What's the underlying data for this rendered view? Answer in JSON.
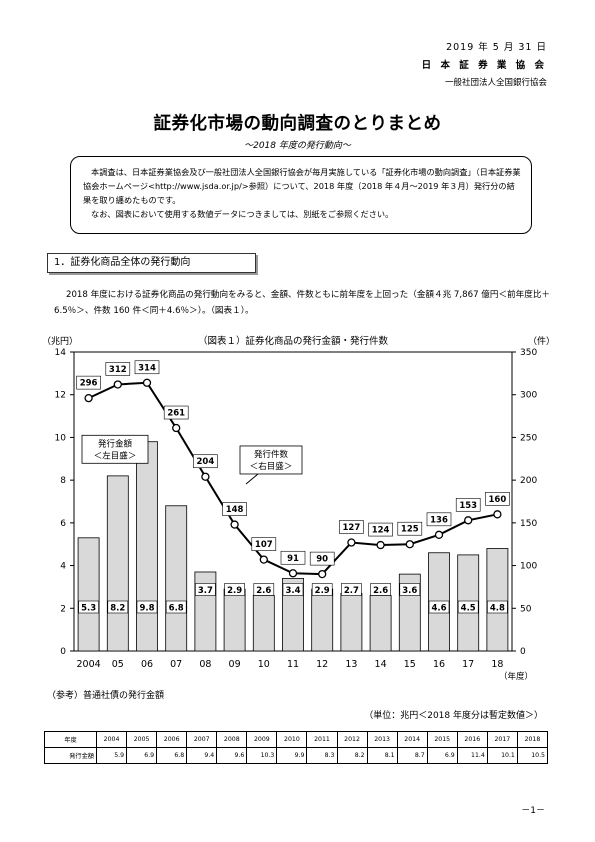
{
  "header": {
    "date": "2019 年 5 月 31 日",
    "org1": "日 本 証 券 業 協 会",
    "org2": "一般社団法人全国銀行協会"
  },
  "title": "証券化市場の動向調査のとりまとめ",
  "subtitle": "～2018 年度の発行動向～",
  "notice": {
    "line1": "本調査は、日本証券業協会及び一般社団法人全国銀行協会が毎月実施している「証券化市場の動向調査」（日本証券業協会ホームページ<http://www.jsda.or.jp/>参照）について、2018 年度（2018 年４月～2019 年３月）発行分の結果を取り纏めたものです。",
    "line2": "なお、図表において使用する数値データにつきましては、別紙をご参照ください。"
  },
  "section1": {
    "heading": "1．証券化商品全体の発行動向",
    "paragraph": "2018 年度における証券化商品の発行動向をみると、金額、件数ともに前年度を上回った（金額４兆 7,867 億円＜前年度比＋6.5％＞、件数 160 件＜同＋4.6％＞）。（図表１）。"
  },
  "chart_data": {
    "type": "bar",
    "title": "（図表１）証券化商品の発行金額・発行件数",
    "categories": [
      "2004",
      "05",
      "06",
      "07",
      "08",
      "09",
      "10",
      "11",
      "12",
      "13",
      "14",
      "15",
      "16",
      "17",
      "18"
    ],
    "series": [
      {
        "name": "発行金額",
        "type": "bar",
        "axis": "left",
        "values": [
          5.3,
          8.2,
          9.8,
          6.8,
          3.7,
          2.9,
          2.6,
          3.4,
          2.9,
          2.7,
          2.6,
          3.6,
          4.6,
          4.5,
          4.8
        ]
      },
      {
        "name": "発行件数",
        "type": "line",
        "axis": "right",
        "values": [
          296,
          312,
          314,
          261,
          204,
          148,
          107,
          91,
          90,
          127,
          124,
          125,
          136,
          153,
          160
        ]
      }
    ],
    "y_left": {
      "label": "（兆円）",
      "min": 0,
      "max": 14,
      "ticks": [
        "0",
        "2",
        "4",
        "6",
        "8",
        "10",
        "12",
        "14"
      ]
    },
    "y_right": {
      "label": "（件）",
      "min": 0,
      "max": 350,
      "ticks": [
        "0",
        "50",
        "100",
        "150",
        "200",
        "250",
        "300",
        "350"
      ]
    },
    "x_unit": "（年度）",
    "annotation_bar": {
      "line1": "発行金額",
      "line2": "＜左目盛＞"
    },
    "annotation_line": {
      "line1": "発行件数",
      "line2": "＜右目盛＞"
    },
    "bar_color": "#d9d9d9",
    "line_color": "#000000"
  },
  "reference": {
    "label": "（参考）普通社債の発行金額",
    "unit": "（単位：兆円＜2018 年度分は暫定数値＞）",
    "row_header_year": "年度",
    "row_header_value": "発行金額",
    "years": [
      "2004",
      "2005",
      "2006",
      "2007",
      "2008",
      "2009",
      "2010",
      "2011",
      "2012",
      "2013",
      "2014",
      "2015",
      "2016",
      "2017",
      "2018"
    ],
    "values": [
      "5.9",
      "6.9",
      "6.8",
      "9.4",
      "9.6",
      "10.3",
      "9.9",
      "8.3",
      "8.2",
      "8.1",
      "8.7",
      "6.9",
      "11.4",
      "10.1",
      "10.5"
    ]
  },
  "page_number": "－1－"
}
